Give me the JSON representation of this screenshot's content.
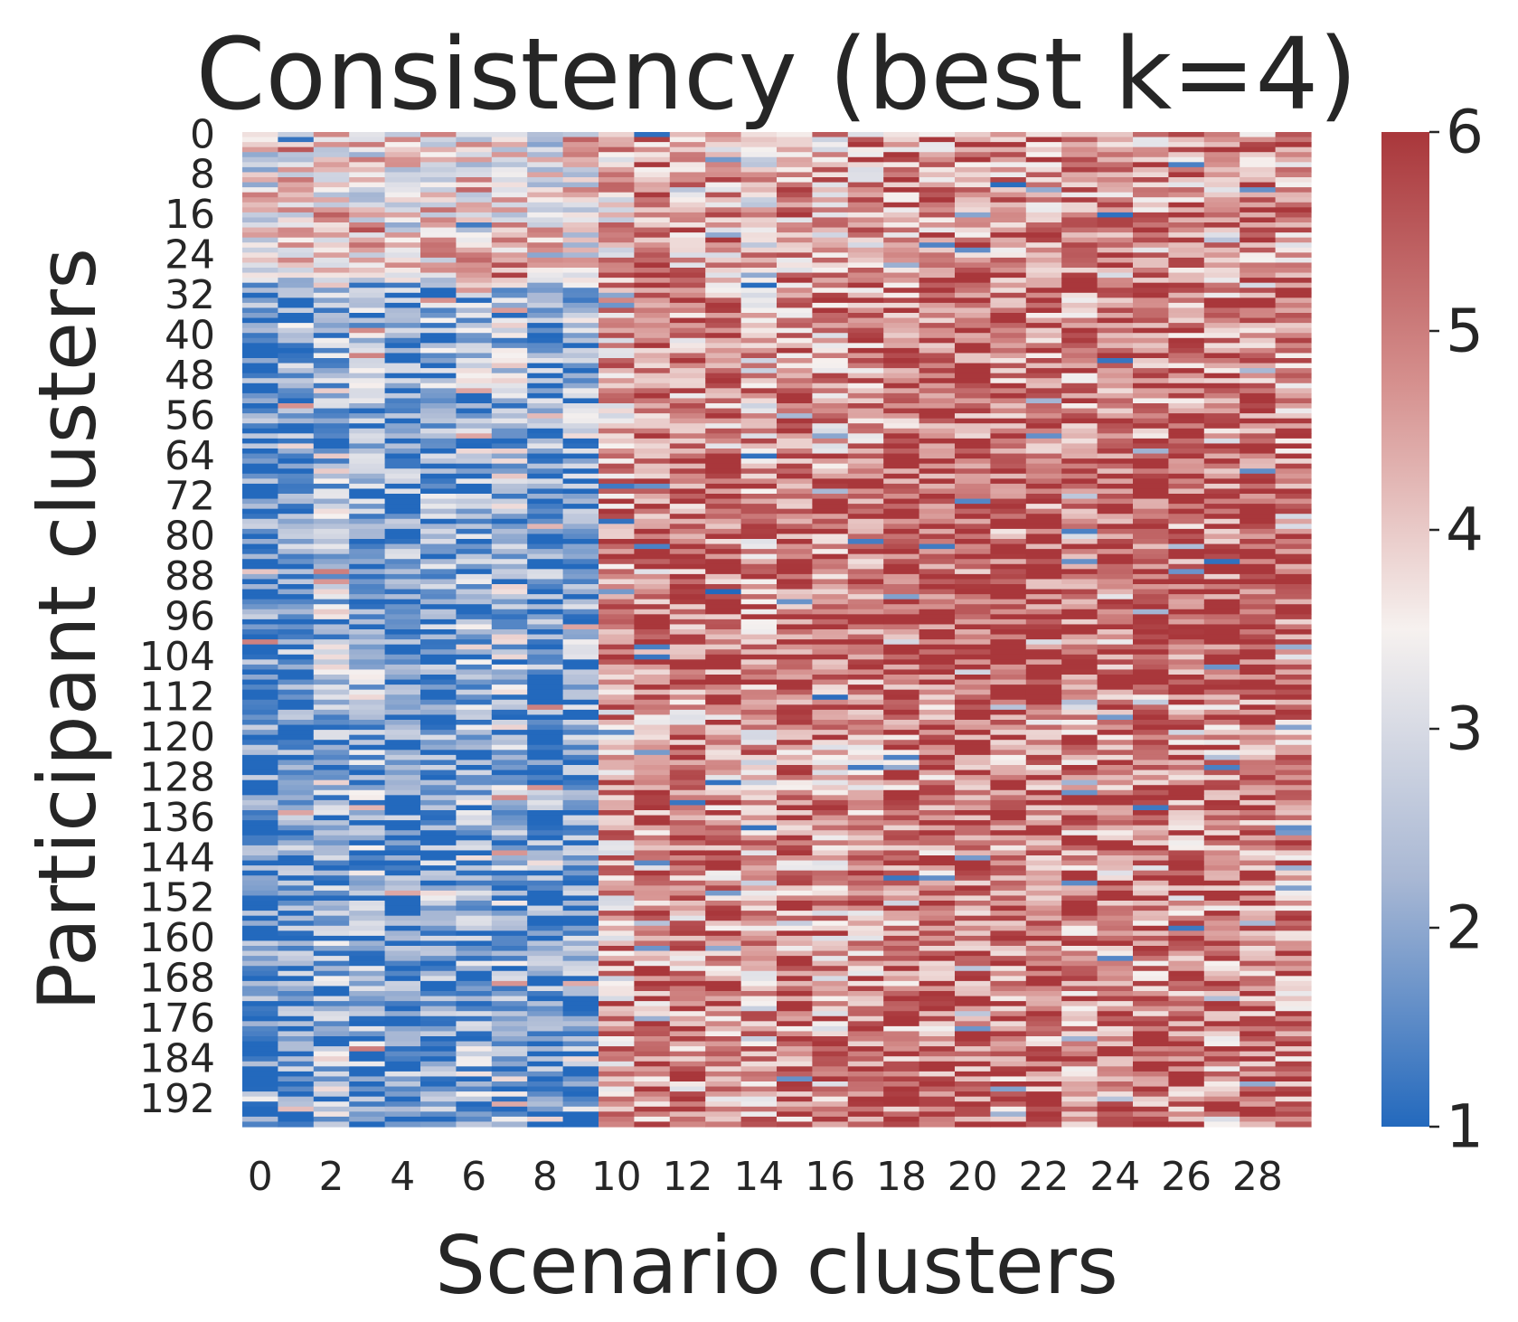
{
  "chart_data": {
    "type": "heatmap",
    "title": "Consistency (best k=4)",
    "xlabel": "Scenario clusters",
    "ylabel": "Participant clusters",
    "n_rows": 198,
    "n_cols": 30,
    "x_tick_labels": [
      "0",
      "2",
      "4",
      "6",
      "8",
      "10",
      "12",
      "14",
      "16",
      "18",
      "20",
      "22",
      "24",
      "26",
      "28"
    ],
    "y_tick_labels": [
      "0",
      "8",
      "16",
      "24",
      "32",
      "40",
      "48",
      "56",
      "64",
      "72",
      "80",
      "88",
      "96",
      "104",
      "112",
      "120",
      "128",
      "136",
      "144",
      "152",
      "160",
      "168",
      "176",
      "184",
      "192"
    ],
    "value_range": [
      1,
      6
    ],
    "colorbar_ticks": [
      "1",
      "2",
      "3",
      "4",
      "5",
      "6"
    ],
    "colormap": "vlag",
    "colormap_stops": [
      "#2369bd",
      "#a9b8d4",
      "#f6f1ef",
      "#d58f8d",
      "#a9373b"
    ],
    "grid": false,
    "legend": "colorbar-right",
    "column_trends": [
      1.5,
      2.0,
      2.6,
      2.3,
      1.9,
      2.0,
      2.3,
      2.6,
      1.8,
      2.1,
      4.4,
      4.9,
      4.7,
      4.8,
      4.3,
      4.9,
      4.6,
      4.7,
      5.0,
      5.0,
      5.3,
      5.1,
      5.1,
      4.9,
      5.1,
      5.0,
      5.0,
      4.9,
      5.2,
      4.9
    ],
    "row_band_notes": "Columns 0-9 are mostly low (about 1-2) from row 30 onward and mixed (about 3-5) for rows 0-30; columns 10-29 are mostly high (about 4-6) throughout, strongest in rows 64-110."
  }
}
